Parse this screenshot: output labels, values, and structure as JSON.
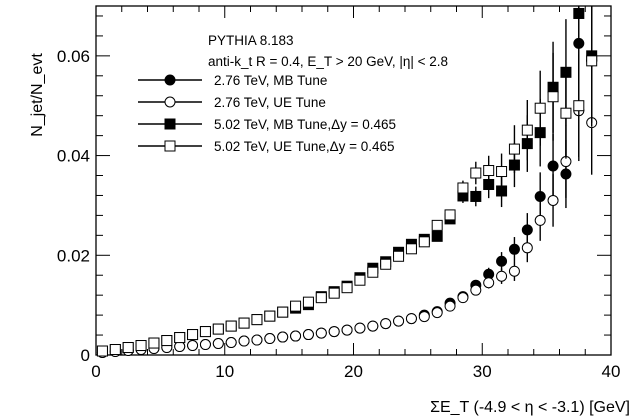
{
  "chart_data": {
    "type": "scatter",
    "xlabel": "ΣE_T (-4.9 < η < -3.1) [GeV]",
    "ylabel": "N_jet/N_evt",
    "xlim": [
      0,
      40
    ],
    "ylim": [
      0,
      0.07
    ],
    "x_ticks": [
      0,
      10,
      20,
      30,
      40
    ],
    "y_ticks": [
      0,
      0.02,
      0.04,
      0.06
    ],
    "x_tick_labels": [
      "0",
      "10",
      "20",
      "30",
      "40"
    ],
    "y_tick_labels": [
      "0",
      "0.02",
      "0.04",
      "0.06"
    ],
    "annotations": [
      "PYTHIA 8.183",
      "anti-k_t R = 0.4,  E_T > 20 GeV,  |η| < 2.8"
    ],
    "legend_position": "top-left",
    "series": [
      {
        "name": "2.76 TeV, MB Tune",
        "marker": "filled-circle",
        "color": "#000000",
        "x": [
          0.5,
          1.5,
          2.5,
          3.5,
          4.5,
          5.5,
          6.5,
          7.5,
          8.5,
          9.5,
          10.5,
          11.5,
          12.5,
          13.5,
          14.5,
          15.5,
          16.5,
          17.5,
          18.5,
          19.5,
          20.5,
          21.5,
          22.5,
          23.5,
          24.5,
          25.5,
          26.5,
          27.5,
          28.5,
          29.5,
          30.5,
          31.5,
          32.5,
          33.5,
          34.5,
          35.5,
          36.5,
          37.5,
          38.5
        ],
        "y": [
          0.0005,
          0.0007,
          0.0009,
          0.0011,
          0.0013,
          0.0015,
          0.0017,
          0.0019,
          0.0021,
          0.0023,
          0.0025,
          0.0028,
          0.003,
          0.0033,
          0.0036,
          0.0038,
          0.0041,
          0.0044,
          0.0047,
          0.005,
          0.0054,
          0.0058,
          0.0063,
          0.0068,
          0.0073,
          0.008,
          0.0087,
          0.0104,
          0.0117,
          0.014,
          0.0162,
          0.0188,
          0.0212,
          0.0251,
          0.0318,
          0.0379,
          0.0363,
          0.0625,
          0.059
        ]
      },
      {
        "name": "2.76 TeV, UE Tune",
        "marker": "open-circle",
        "color": "#000000",
        "x": [
          0.5,
          1.5,
          2.5,
          3.5,
          4.5,
          5.5,
          6.5,
          7.5,
          8.5,
          9.5,
          10.5,
          11.5,
          12.5,
          13.5,
          14.5,
          15.5,
          16.5,
          17.5,
          18.5,
          19.5,
          20.5,
          21.5,
          22.5,
          23.5,
          24.5,
          25.5,
          26.5,
          27.5,
          28.5,
          29.5,
          30.5,
          31.5,
          32.5,
          33.5,
          34.5,
          35.5,
          36.5,
          37.5,
          38.5
        ],
        "y": [
          0.0005,
          0.0007,
          0.0009,
          0.0011,
          0.0013,
          0.0015,
          0.0017,
          0.0019,
          0.0021,
          0.0023,
          0.0025,
          0.0028,
          0.003,
          0.0033,
          0.0036,
          0.0038,
          0.0041,
          0.0044,
          0.0047,
          0.005,
          0.0054,
          0.0058,
          0.0063,
          0.0068,
          0.0073,
          0.0077,
          0.0085,
          0.0098,
          0.0115,
          0.013,
          0.0145,
          0.0158,
          0.0168,
          0.0215,
          0.027,
          0.031,
          0.0388,
          0.049,
          0.0466
        ]
      },
      {
        "name": "5.02 TeV, MB Tune,Δy = 0.465",
        "marker": "filled-square",
        "color": "#000000",
        "x": [
          0.5,
          1.5,
          2.5,
          3.5,
          4.5,
          5.5,
          6.5,
          7.5,
          8.5,
          9.5,
          10.5,
          11.5,
          12.5,
          13.5,
          14.5,
          15.5,
          16.5,
          17.5,
          18.5,
          19.5,
          20.5,
          21.5,
          22.5,
          23.5,
          24.5,
          25.5,
          26.5,
          27.5,
          28.5,
          29.5,
          30.5,
          31.5,
          32.5,
          33.5,
          34.5,
          35.5,
          36.5,
          37.5,
          38.5
        ],
        "y": [
          0.0008,
          0.0011,
          0.0015,
          0.0019,
          0.0024,
          0.0029,
          0.0035,
          0.0041,
          0.0047,
          0.0052,
          0.0058,
          0.0064,
          0.0071,
          0.0078,
          0.0086,
          0.0094,
          0.0101,
          0.0117,
          0.0127,
          0.0138,
          0.0155,
          0.0174,
          0.0187,
          0.0206,
          0.0222,
          0.0232,
          0.0238,
          0.0273,
          0.0319,
          0.0318,
          0.0342,
          0.0329,
          0.0381,
          0.0424,
          0.0446,
          0.0537,
          0.0567,
          0.0685,
          0.06
        ]
      },
      {
        "name": "5.02 TeV, UE Tune,Δy = 0.465",
        "marker": "open-square",
        "color": "#000000",
        "x": [
          0.5,
          1.5,
          2.5,
          3.5,
          4.5,
          5.5,
          6.5,
          7.5,
          8.5,
          9.5,
          10.5,
          11.5,
          12.5,
          13.5,
          14.5,
          15.5,
          16.5,
          17.5,
          18.5,
          19.5,
          20.5,
          21.5,
          22.5,
          23.5,
          24.5,
          25.5,
          26.5,
          27.5,
          28.5,
          29.5,
          30.5,
          31.5,
          32.5,
          33.5,
          34.5,
          35.5,
          36.5,
          37.5,
          38.5
        ],
        "y": [
          0.0008,
          0.0011,
          0.0015,
          0.0019,
          0.0024,
          0.0029,
          0.0035,
          0.0041,
          0.0047,
          0.0052,
          0.0058,
          0.0064,
          0.0071,
          0.0078,
          0.0086,
          0.0098,
          0.0106,
          0.0115,
          0.0124,
          0.0135,
          0.015,
          0.0166,
          0.0182,
          0.0198,
          0.0213,
          0.0227,
          0.026,
          0.0281,
          0.0335,
          0.0365,
          0.037,
          0.0368,
          0.0413,
          0.0451,
          0.0495,
          0.0518,
          0.0485,
          0.05,
          0.059
        ]
      }
    ]
  }
}
